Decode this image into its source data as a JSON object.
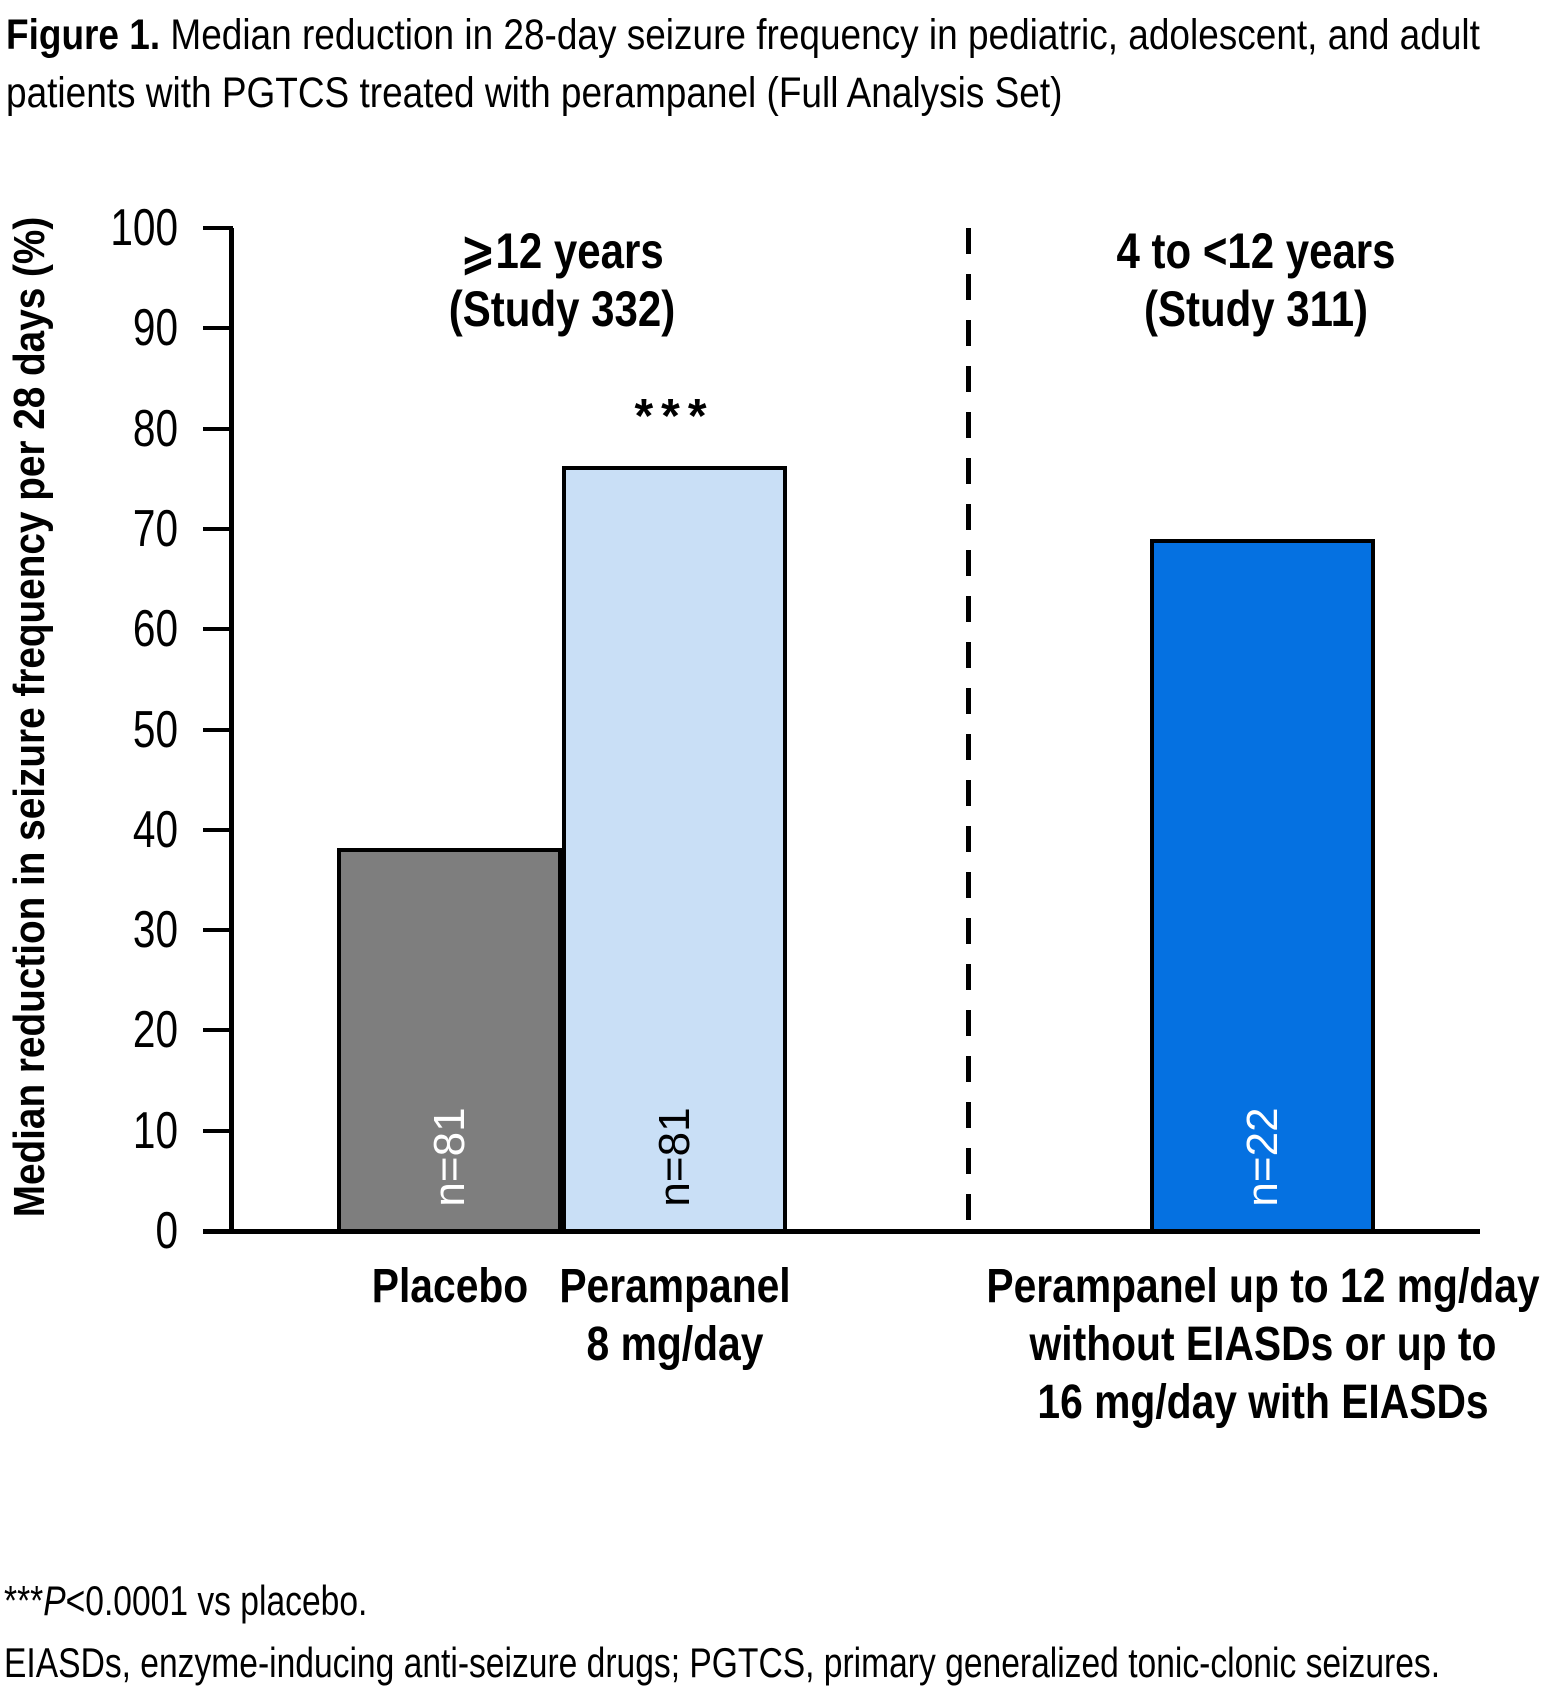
{
  "figure": {
    "title_bold": "Figure 1.",
    "title_rest": " Median reduction in 28-day seizure frequency in pediatric, adolescent, and adult patients with PGTCS treated with perampanel (Full Analysis Set)"
  },
  "chart_data": {
    "type": "bar",
    "ylabel": "Median reduction in seizure frequency per 28 days (%)",
    "ylim": [
      0,
      100
    ],
    "yticks": [
      0,
      10,
      20,
      30,
      40,
      50,
      60,
      70,
      80,
      90,
      100
    ],
    "grid": false,
    "legend": false,
    "section_divider": "dashed-vertical-line",
    "groups": [
      {
        "label": "⩾12 years",
        "sublabel": "(Study 332)",
        "bars": [
          {
            "category_lines": [
              "Placebo"
            ],
            "value": 38.4,
            "n": "n=81",
            "color": "#7e7e7e",
            "n_color": "#ffffff"
          },
          {
            "category_lines": [
              "Perampanel",
              "8 mg/day"
            ],
            "value": 76.5,
            "n": "n=81",
            "color": "#c9dff6",
            "n_color": "#000000",
            "annotation": "***"
          }
        ]
      },
      {
        "label": "4 to <12 years",
        "sublabel": "(Study 311)",
        "bars": [
          {
            "category_lines": [
              "Perampanel up to 12 mg/day",
              "without EIASDs or up to",
              "16 mg/day with EIASDs"
            ],
            "value": 69.2,
            "n": "n=22",
            "color": "#0571e1",
            "n_color": "#ffffff"
          }
        ]
      }
    ]
  },
  "footnotes": {
    "significance_stars": "***",
    "significance_p": "P",
    "significance_rest": "<0.0001 vs placebo.",
    "abbreviations": "EIASDs, enzyme-inducing anti-seizure drugs; PGTCS, primary generalized tonic-clonic seizures."
  }
}
